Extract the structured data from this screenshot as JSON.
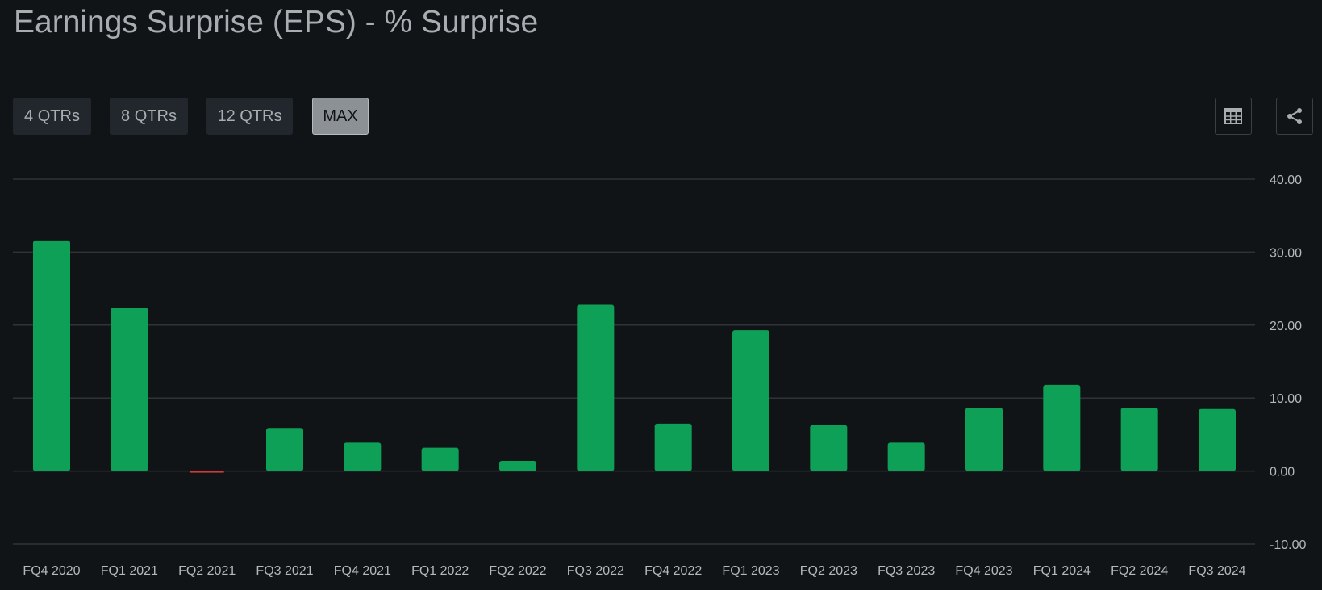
{
  "title": "Earnings Surprise (EPS) - % Surprise",
  "ranges": [
    {
      "label": "4 QTRs",
      "active": false
    },
    {
      "label": "8 QTRs",
      "active": false
    },
    {
      "label": "12 QTRs",
      "active": false
    },
    {
      "label": "MAX",
      "active": true
    }
  ],
  "toolbar": {
    "table_icon": "table-icon",
    "share_icon": "share-icon"
  },
  "colors": {
    "positive": "#0fa058",
    "negative": "#d23a3a",
    "grid": "#2e3338",
    "text": "#b5b9bd"
  },
  "chart_data": {
    "type": "bar",
    "categories": [
      "FQ4 2020",
      "FQ1 2021",
      "FQ2 2021",
      "FQ3 2021",
      "FQ4 2021",
      "FQ1 2022",
      "FQ2 2022",
      "FQ3 2022",
      "FQ4 2022",
      "FQ1 2023",
      "FQ2 2023",
      "FQ3 2023",
      "FQ4 2023",
      "FQ1 2024",
      "FQ2 2024",
      "FQ3 2024"
    ],
    "values": [
      31.6,
      22.4,
      -0.2,
      5.9,
      3.9,
      3.2,
      1.4,
      22.8,
      6.5,
      19.3,
      6.3,
      3.9,
      8.7,
      11.8,
      8.7,
      8.5
    ],
    "ylim": [
      -10,
      40
    ],
    "yticks": [
      -10,
      0,
      10,
      20,
      30,
      40
    ],
    "ytick_labels": [
      "-10.00",
      "0.00",
      "10.00",
      "20.00",
      "30.00",
      "40.00"
    ],
    "grid": true,
    "legend": "none",
    "title": "Earnings Surprise (EPS) - % Surprise",
    "xlabel": "",
    "ylabel": ""
  }
}
